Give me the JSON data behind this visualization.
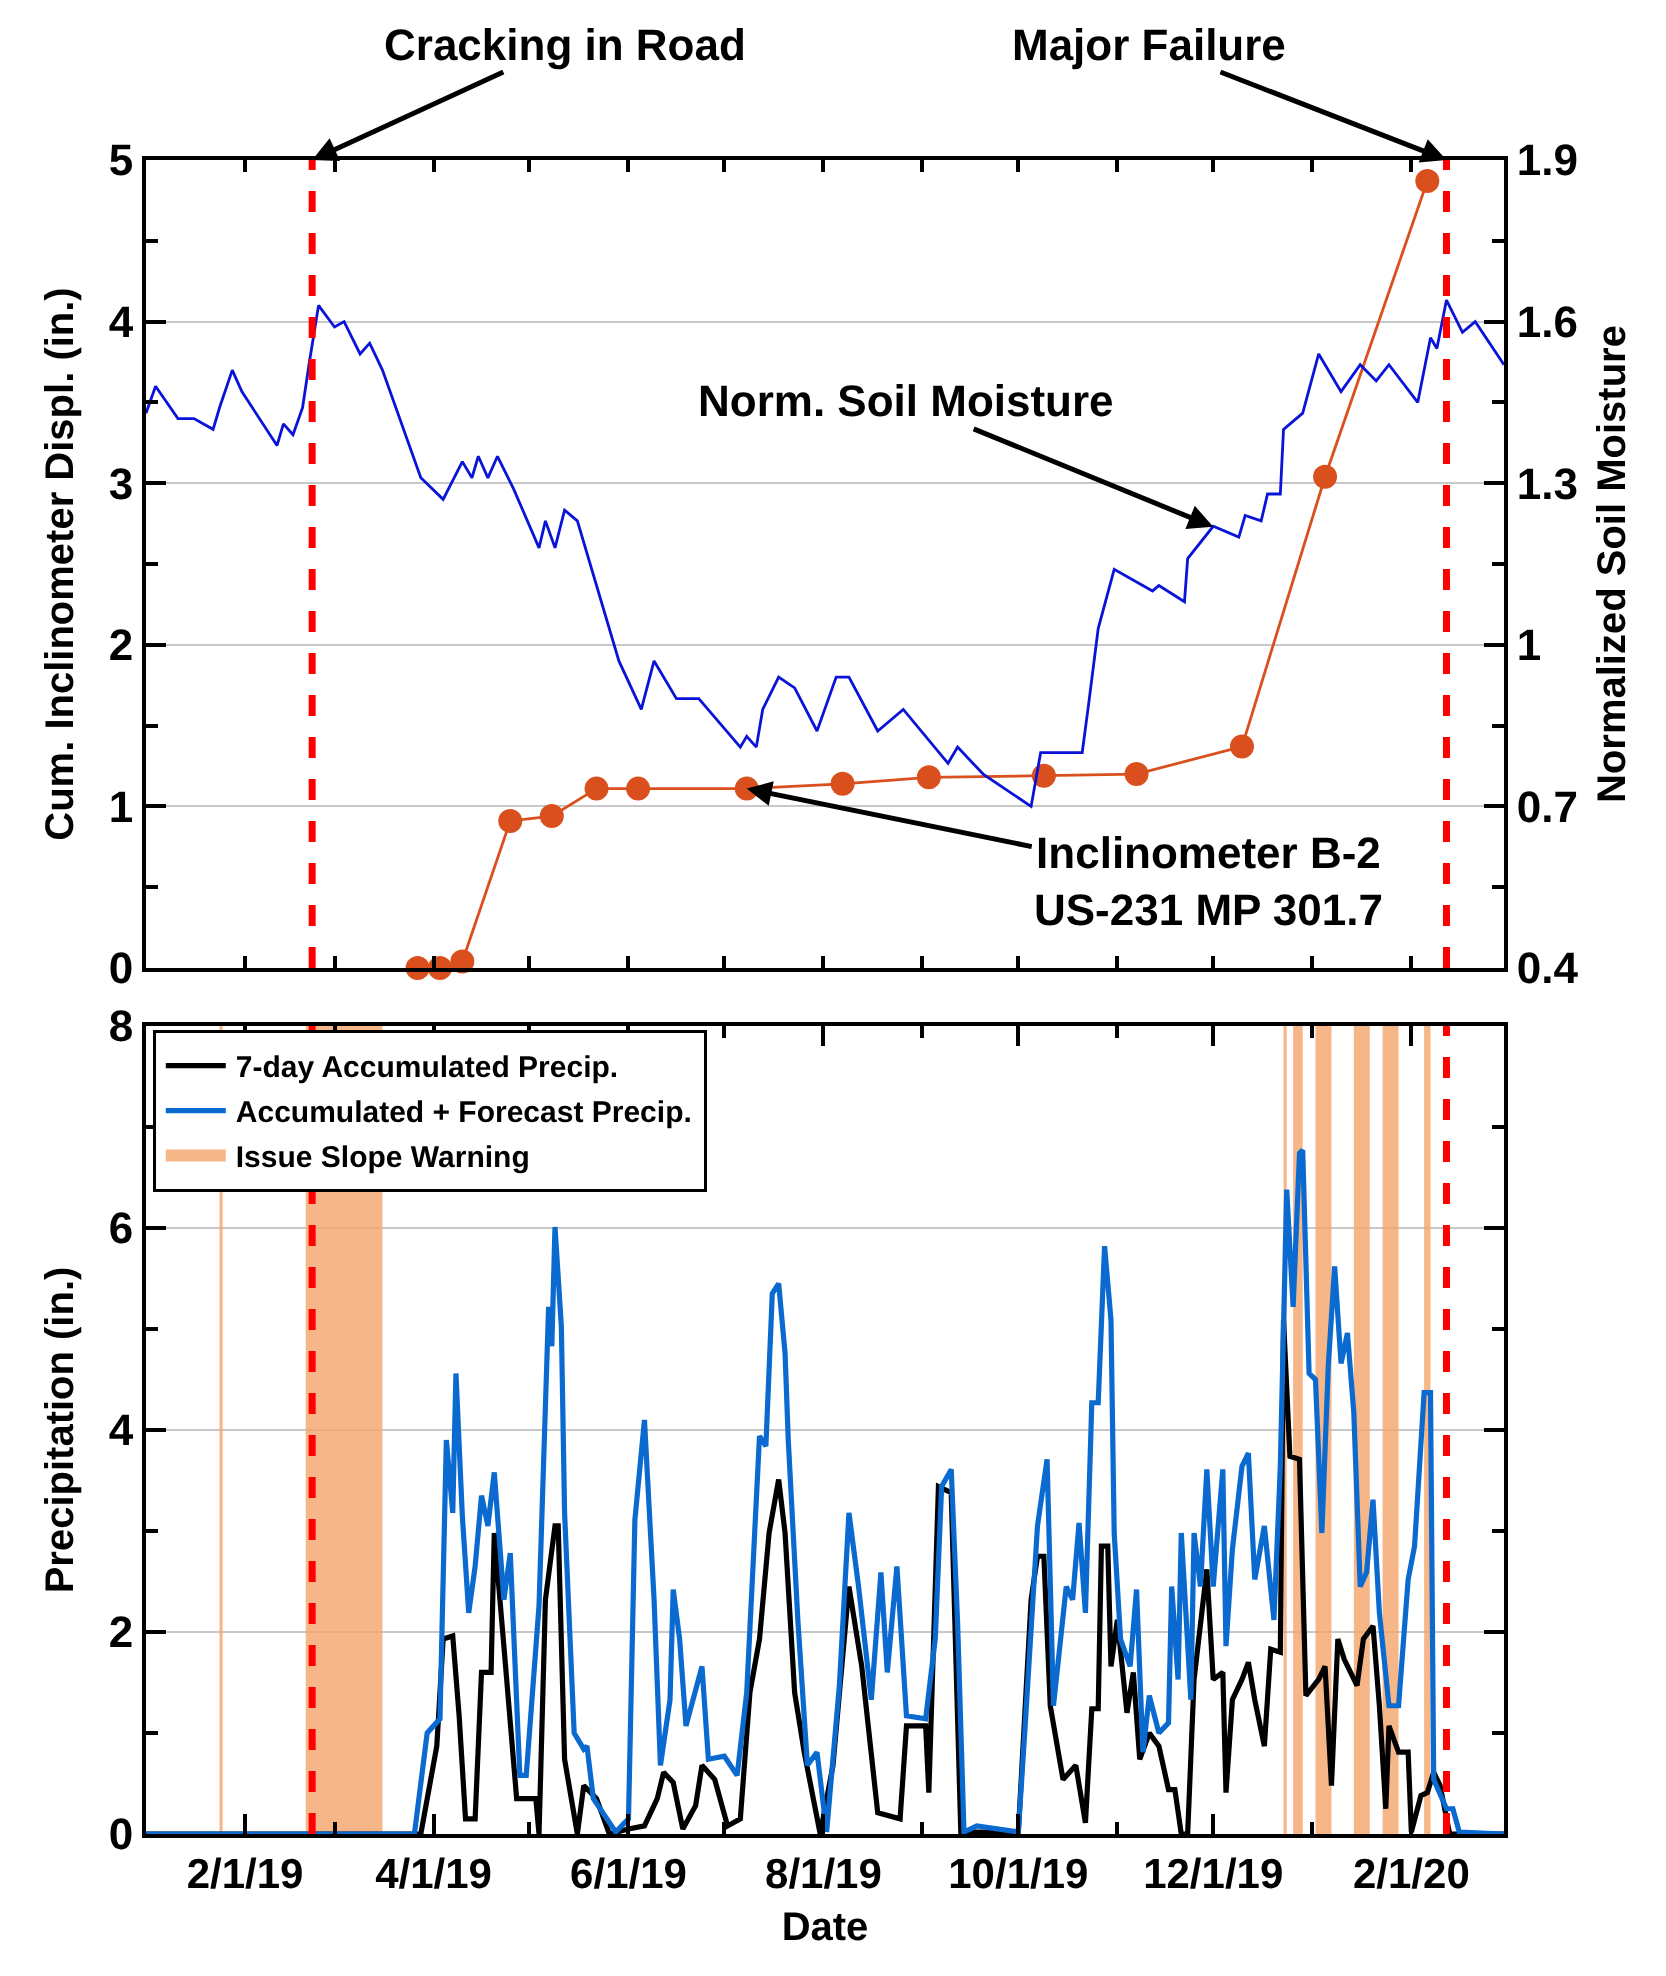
{
  "chart_data": [
    {
      "type": "line",
      "ylabel": "Cum. Inclinometer Displ. (in.)",
      "y2label": "Normalized Soil Moisture",
      "xlim": [
        "2019-01-01",
        "2020-03-01"
      ],
      "xticks": [
        {
          "value": "2019-02-01",
          "label": null
        },
        {
          "value": "2019-03-01",
          "label": null
        },
        {
          "value": "2019-04-01",
          "label": null
        },
        {
          "value": "2019-05-01",
          "label": null
        },
        {
          "value": "2019-06-01",
          "label": null
        },
        {
          "value": "2019-07-01",
          "label": null
        },
        {
          "value": "2019-08-01",
          "label": null
        },
        {
          "value": "2019-09-01",
          "label": null
        },
        {
          "value": "2019-10-01",
          "label": null
        },
        {
          "value": "2019-11-01",
          "label": null
        },
        {
          "value": "2019-12-01",
          "label": null
        },
        {
          "value": "2020-01-01",
          "label": null
        },
        {
          "value": "2020-02-01",
          "label": null
        }
      ],
      "ylim": [
        0,
        5
      ],
      "yticks": [
        0,
        {
          "value": 0.5,
          "label": null
        },
        1,
        {
          "value": 1.5,
          "label": null
        },
        2,
        {
          "value": 2.5,
          "label": null
        },
        3,
        {
          "value": 3.5,
          "label": null
        },
        4,
        {
          "value": 4.5,
          "label": null
        },
        5
      ],
      "y2lim": [
        0.4,
        1.9
      ],
      "y2ticks": [
        0.4,
        {
          "value": 0.55,
          "label": null
        },
        0.7,
        {
          "value": 0.85,
          "label": null
        },
        1,
        {
          "value": 1.15,
          "label": null
        },
        1.3,
        {
          "value": 1.45,
          "label": null
        },
        1.6,
        {
          "value": 1.75,
          "label": null
        },
        1.9
      ],
      "grid": "y",
      "tick_labels": "y",
      "ref_lines": [
        {
          "axis": "x",
          "value": "2019-02-22",
          "label": "Cracking in Road",
          "color": "#ff0000",
          "line_style": "dashed"
        },
        {
          "axis": "x",
          "value": "2020-02-12",
          "label": "Major Failure",
          "color": "#ff0000",
          "line_style": "dashed"
        }
      ],
      "annotations": [
        {
          "text": "Norm. Soil Moisture",
          "x": "2019-12-01",
          "y": 2.73
        },
        {
          "text": "Inclinometer B-2\nUS-231 MP 301.7",
          "x": "2019-07-08",
          "y": 1.11
        }
      ],
      "series": [
        {
          "color": "#d9501e",
          "marker": "circle",
          "x": [
            "2019-03-27",
            "2019-04-03",
            "2019-04-10",
            "2019-04-25",
            "2019-05-08",
            "2019-05-22",
            "2019-06-04",
            "2019-07-08",
            "2019-08-07",
            "2019-09-03",
            "2019-10-09",
            "2019-11-07",
            "2019-12-10",
            "2020-01-05",
            "2020-02-06"
          ],
          "values": [
            0,
            0,
            0.04,
            0.91,
            0.94,
            1.11,
            1.11,
            1.11,
            1.14,
            1.18,
            1.19,
            1.2,
            1.37,
            3.04,
            4.87
          ]
        },
        {
          "color": "#0a14d8",
          "axis": "y2",
          "marker": "none",
          "x": [
            "2019-01-01",
            "2019-01-04",
            "2019-01-11",
            "2019-01-16",
            "2019-01-22",
            "2019-01-24",
            "2019-01-28",
            "2019-01-31",
            "2019-02-11",
            "2019-02-13",
            "2019-02-16",
            "2019-02-19",
            "2019-02-21",
            "2019-02-24",
            "2019-03-01",
            "2019-03-04",
            "2019-03-09",
            "2019-03-12",
            "2019-03-16",
            "2019-03-28",
            "2019-04-04",
            "2019-04-10",
            "2019-04-13",
            "2019-04-15",
            "2019-04-18",
            "2019-04-21",
            "2019-04-26",
            "2019-05-04",
            "2019-05-06",
            "2019-05-09",
            "2019-05-12",
            "2019-05-16",
            "2019-05-29",
            "2019-06-05",
            "2019-06-09",
            "2019-06-16",
            "2019-06-23",
            "2019-07-06",
            "2019-07-08",
            "2019-07-11",
            "2019-07-13",
            "2019-07-18",
            "2019-07-23",
            "2019-07-30",
            "2019-08-05",
            "2019-08-09",
            "2019-08-18",
            "2019-08-26",
            "2019-09-09",
            "2019-09-12",
            "2019-09-20",
            "2019-10-05",
            "2019-10-08",
            "2019-10-21",
            "2019-10-23",
            "2019-10-26",
            "2019-10-31",
            "2019-11-12",
            "2019-11-14",
            "2019-11-22",
            "2019-11-23",
            "2019-12-01",
            "2019-12-09",
            "2019-12-11",
            "2019-12-16",
            "2019-12-18",
            "2019-12-22",
            "2019-12-23",
            "2019-12-29",
            "2020-01-03",
            "2020-01-10",
            "2020-01-16",
            "2020-01-21",
            "2020-01-25",
            "2020-02-03",
            "2020-02-07",
            "2020-02-09",
            "2020-02-12",
            "2020-02-17",
            "2020-02-21",
            "2020-03-01"
          ],
          "values": [
            1.43,
            1.48,
            1.42,
            1.42,
            1.4,
            1.44,
            1.51,
            1.47,
            1.37,
            1.41,
            1.39,
            1.44,
            1.52,
            1.63,
            1.59,
            1.6,
            1.54,
            1.56,
            1.51,
            1.31,
            1.27,
            1.34,
            1.31,
            1.35,
            1.31,
            1.35,
            1.29,
            1.18,
            1.23,
            1.18,
            1.25,
            1.23,
            0.97,
            0.88,
            0.97,
            0.9,
            0.9,
            0.81,
            0.83,
            0.81,
            0.88,
            0.94,
            0.92,
            0.84,
            0.94,
            0.94,
            0.84,
            0.88,
            0.78,
            0.81,
            0.76,
            0.7,
            0.8,
            0.8,
            0.89,
            1.03,
            1.14,
            1.1,
            1.11,
            1.08,
            1.16,
            1.22,
            1.2,
            1.24,
            1.23,
            1.28,
            1.28,
            1.4,
            1.43,
            1.54,
            1.47,
            1.52,
            1.49,
            1.52,
            1.45,
            1.57,
            1.55,
            1.64,
            1.58,
            1.6,
            1.52
          ]
        }
      ]
    },
    {
      "type": "line",
      "xlabel": "Date",
      "ylabel": "Precipitation (in.)",
      "xlim": [
        "2019-01-01",
        "2020-03-01"
      ],
      "xticks": [
        {
          "value": "2019-02-01",
          "label": "2/1/19"
        },
        {
          "value": "2019-03-01",
          "label": null
        },
        {
          "value": "2019-04-01",
          "label": "4/1/19"
        },
        {
          "value": "2019-05-01",
          "label": null
        },
        {
          "value": "2019-06-01",
          "label": "6/1/19"
        },
        {
          "value": "2019-07-01",
          "label": null
        },
        {
          "value": "2019-08-01",
          "label": "8/1/19"
        },
        {
          "value": "2019-09-01",
          "label": null
        },
        {
          "value": "2019-10-01",
          "label": "10/1/19"
        },
        {
          "value": "2019-11-01",
          "label": null
        },
        {
          "value": "2019-12-01",
          "label": "12/1/19"
        },
        {
          "value": "2020-01-01",
          "label": null
        },
        {
          "value": "2020-02-01",
          "label": "2/1/20"
        }
      ],
      "ylim": [
        0,
        8
      ],
      "yticks": [
        0,
        {
          "value": 1,
          "label": null
        },
        2,
        {
          "value": 3,
          "label": null
        },
        4,
        {
          "value": 5,
          "label": null
        },
        6,
        {
          "value": 7,
          "label": null
        },
        8
      ],
      "grid": "y",
      "legend": "top left",
      "ref_lines": [
        {
          "axis": "x",
          "value": "2019-02-22",
          "color": "#ff0000",
          "line_style": "dashed"
        },
        {
          "axis": "x",
          "value": "2020-02-12",
          "color": "#ff0000",
          "line_style": "dashed"
        }
      ],
      "bands": [
        {
          "axis": "x",
          "from": "2019-01-24",
          "to": "2019-01-25",
          "label": "Issue Slope Warning",
          "color": "#f4a46a"
        },
        {
          "axis": "x",
          "from": "2019-02-20",
          "to": "2019-03-16",
          "color": "#f4a46a"
        },
        {
          "axis": "x",
          "from": "2019-12-23",
          "to": "2019-12-24",
          "color": "#f4a46a"
        },
        {
          "axis": "x",
          "from": "2019-12-26",
          "to": "2019-12-29",
          "color": "#f4a46a"
        },
        {
          "axis": "x",
          "from": "2020-01-02",
          "to": "2020-01-07",
          "color": "#f4a46a"
        },
        {
          "axis": "x",
          "from": "2020-01-14",
          "to": "2020-01-19",
          "color": "#f4a46a"
        },
        {
          "axis": "x",
          "from": "2020-01-23",
          "to": "2020-01-28",
          "color": "#f4a46a"
        },
        {
          "axis": "x",
          "from": "2020-02-05",
          "to": "2020-02-07",
          "color": "#f4a46a"
        }
      ],
      "series": [
        {
          "name": "7-day Accumulated Precip.",
          "color": "#000000",
          "x": [
            "2019-01-01",
            "2019-03-28",
            "2019-04-02",
            "2019-04-04",
            "2019-04-07",
            "2019-04-09",
            "2019-04-11",
            "2019-04-14",
            "2019-04-16",
            "2019-04-19",
            "2019-04-20",
            "2019-04-23",
            "2019-04-27",
            "2019-05-03",
            "2019-05-04",
            "2019-05-06",
            "2019-05-09",
            "2019-05-10",
            "2019-05-12",
            "2019-05-16",
            "2019-05-18",
            "2019-05-22",
            "2019-05-26",
            "2019-06-01",
            "2019-06-06",
            "2019-06-10",
            "2019-06-12",
            "2019-06-15",
            "2019-06-18",
            "2019-06-22",
            "2019-06-24",
            "2019-06-28",
            "2019-07-02",
            "2019-07-06",
            "2019-07-09",
            "2019-07-12",
            "2019-07-15",
            "2019-07-18",
            "2019-07-20",
            "2019-07-23",
            "2019-07-26",
            "2019-07-31",
            "2019-08-04",
            "2019-08-09",
            "2019-08-13",
            "2019-08-18",
            "2019-08-25",
            "2019-08-27",
            "2019-09-02",
            "2019-09-03",
            "2019-09-06",
            "2019-09-10",
            "2019-09-13",
            "2019-10-01",
            "2019-10-05",
            "2019-10-07",
            "2019-10-09",
            "2019-10-11",
            "2019-10-15",
            "2019-10-19",
            "2019-10-22",
            "2019-10-24",
            "2019-10-26",
            "2019-10-27",
            "2019-10-29",
            "2019-10-30",
            "2019-11-01",
            "2019-11-04",
            "2019-11-06",
            "2019-11-08",
            "2019-11-11",
            "2019-11-14",
            "2019-11-17",
            "2019-11-19",
            "2019-11-21",
            "2019-11-23",
            "2019-11-25",
            "2019-11-29",
            "2019-12-01",
            "2019-12-04",
            "2019-12-05",
            "2019-12-07",
            "2019-12-10",
            "2019-12-12",
            "2019-12-14",
            "2019-12-17",
            "2019-12-19",
            "2019-12-22",
            "2019-12-23",
            "2019-12-25",
            "2019-12-28",
            "2019-12-30",
            "2020-01-03",
            "2020-01-05",
            "2020-01-07",
            "2020-01-09",
            "2020-01-11",
            "2020-01-15",
            "2020-01-17",
            "2020-01-20",
            "2020-01-22",
            "2020-01-24",
            "2020-01-25",
            "2020-01-28",
            "2020-01-31",
            "2020-02-01",
            "2020-02-04",
            "2020-02-06",
            "2020-02-08",
            "2020-02-10",
            "2020-02-13",
            "2020-03-01"
          ],
          "values": [
            0,
            0,
            0.87,
            1.93,
            1.96,
            1.17,
            0.15,
            0.15,
            1.6,
            1.6,
            2.98,
            1.86,
            0.35,
            0.35,
            0,
            2.32,
            3.05,
            3.05,
            0.74,
            0,
            0.48,
            0.35,
            0,
            0.05,
            0.08,
            0.35,
            0.61,
            0.51,
            0.05,
            0.28,
            0.68,
            0.54,
            0.08,
            0.15,
            1.4,
            1.93,
            2.98,
            3.51,
            2.98,
            1.4,
            0.81,
            0,
            0.68,
            2.45,
            1.66,
            0.21,
            0.15,
            1.07,
            1.07,
            0.41,
            3.44,
            3.38,
            0.02,
            0.02,
            2.32,
            2.75,
            2.75,
            1.27,
            0.54,
            0.68,
            0.11,
            1.24,
            1.24,
            2.85,
            2.85,
            1.66,
            2.12,
            1.2,
            1.6,
            0.74,
            1.0,
            0.87,
            0.44,
            0.44,
            0,
            0,
            1.53,
            2.62,
            1.53,
            1.6,
            0.41,
            1.33,
            1.53,
            1.7,
            1.33,
            0.87,
            1.83,
            1.8,
            5.09,
            3.74,
            3.71,
            1.37,
            1.53,
            1.66,
            0.48,
            1.93,
            1.73,
            1.47,
            1.93,
            2.06,
            1.27,
            0.25,
            1.07,
            0.81,
            0.81,
            0.02,
            0.38,
            0.41,
            0.61,
            0.48,
            0,
            0
          ]
        },
        {
          "name": "Accumulated + Forecast Precip.",
          "color": "#0a6ad0",
          "x": [
            "2019-01-01",
            "2019-03-26",
            "2019-03-30",
            "2019-04-03",
            "2019-04-05",
            "2019-04-07",
            "2019-04-08",
            "2019-04-10",
            "2019-04-12",
            "2019-04-14",
            "2019-04-16",
            "2019-04-18",
            "2019-04-20",
            "2019-04-23",
            "2019-04-25",
            "2019-04-28",
            "2019-04-30",
            "2019-05-04",
            "2019-05-07",
            "2019-05-08",
            "2019-05-09",
            "2019-05-11",
            "2019-05-12",
            "2019-05-15",
            "2019-05-18",
            "2019-05-19",
            "2019-05-21",
            "2019-05-28",
            "2019-06-01",
            "2019-06-03",
            "2019-06-06",
            "2019-06-09",
            "2019-06-11",
            "2019-06-14",
            "2019-06-15",
            "2019-06-17",
            "2019-06-19",
            "2019-06-24",
            "2019-06-26",
            "2019-07-01",
            "2019-07-05",
            "2019-07-08",
            "2019-07-12",
            "2019-07-14",
            "2019-07-16",
            "2019-07-18",
            "2019-07-20",
            "2019-07-21",
            "2019-07-24",
            "2019-07-27",
            "2019-07-30",
            "2019-08-02",
            "2019-08-06",
            "2019-08-09",
            "2019-08-12",
            "2019-08-16",
            "2019-08-19",
            "2019-08-21",
            "2019-08-24",
            "2019-08-27",
            "2019-09-02",
            "2019-09-05",
            "2019-09-07",
            "2019-09-10",
            "2019-09-12",
            "2019-09-14",
            "2019-09-18",
            "2019-10-01",
            "2019-10-03",
            "2019-10-07",
            "2019-10-10",
            "2019-10-12",
            "2019-10-16",
            "2019-10-18",
            "2019-10-20",
            "2019-10-22",
            "2019-10-24",
            "2019-10-26",
            "2019-10-28",
            "2019-10-30",
            "2019-10-31",
            "2019-11-02",
            "2019-11-05",
            "2019-11-07",
            "2019-11-09",
            "2019-11-11",
            "2019-11-14",
            "2019-11-17",
            "2019-11-18",
            "2019-11-20",
            "2019-11-21",
            "2019-11-24",
            "2019-11-25",
            "2019-11-27",
            "2019-11-29",
            "2019-12-01",
            "2019-12-04",
            "2019-12-05",
            "2019-12-07",
            "2019-12-10",
            "2019-12-12",
            "2019-12-14",
            "2019-12-17",
            "2019-12-20",
            "2019-12-22",
            "2019-12-24",
            "2019-12-26",
            "2019-12-28",
            "2019-12-29",
            "2019-12-31",
            "2020-01-02",
            "2020-01-04",
            "2020-01-06",
            "2020-01-08",
            "2020-01-10",
            "2020-01-12",
            "2020-01-14",
            "2020-01-16",
            "2020-01-18",
            "2020-01-20",
            "2020-01-22",
            "2020-01-25",
            "2020-01-28",
            "2020-01-31",
            "2020-02-02",
            "2020-02-05",
            "2020-02-07",
            "2020-02-08",
            "2020-02-12",
            "2020-02-14",
            "2020-02-16",
            "2020-03-01"
          ],
          "values": [
            0,
            0,
            1.0,
            1.14,
            3.9,
            3.18,
            4.56,
            3.15,
            2.19,
            2.65,
            3.35,
            3.05,
            3.58,
            2.32,
            2.78,
            0.58,
            0.58,
            2.26,
            5.22,
            4.83,
            6.01,
            5.02,
            3.18,
            1.0,
            0.84,
            0.87,
            0.35,
            0.02,
            0.15,
            3.11,
            4.1,
            2.32,
            0.68,
            1.33,
            2.42,
            1.93,
            1.07,
            1.66,
            0.74,
            0.77,
            0.58,
            1.4,
            3.94,
            3.84,
            5.35,
            5.45,
            4.76,
            3.9,
            2.12,
            0.68,
            0.81,
            0.02,
            1.47,
            3.18,
            2.45,
            1.33,
            2.59,
            1.6,
            2.65,
            1.17,
            1.14,
            1.93,
            3.44,
            3.61,
            2.09,
            0.02,
            0.08,
            0.02,
            1.0,
            3.05,
            3.71,
            1.27,
            2.45,
            2.32,
            3.08,
            2.19,
            4.27,
            4.27,
            5.82,
            5.09,
            2.98,
            1.93,
            1.66,
            2.42,
            0.81,
            1.37,
            1.0,
            1.1,
            2.45,
            1.53,
            2.98,
            1.33,
            2.98,
            2.45,
            3.61,
            2.45,
            3.61,
            1.86,
            2.82,
            3.64,
            3.77,
            2.52,
            3.05,
            2.12,
            3.64,
            6.38,
            5.22,
            6.74,
            6.77,
            4.56,
            4.5,
            2.98,
            4.63,
            5.62,
            4.66,
            4.96,
            4.17,
            2.45,
            2.59,
            3.31,
            2.19,
            1.27,
            1.27,
            2.52,
            2.85,
            4.37,
            4.37,
            0.54,
            0.25,
            0.25,
            0.02,
            0
          ]
        }
      ]
    }
  ]
}
